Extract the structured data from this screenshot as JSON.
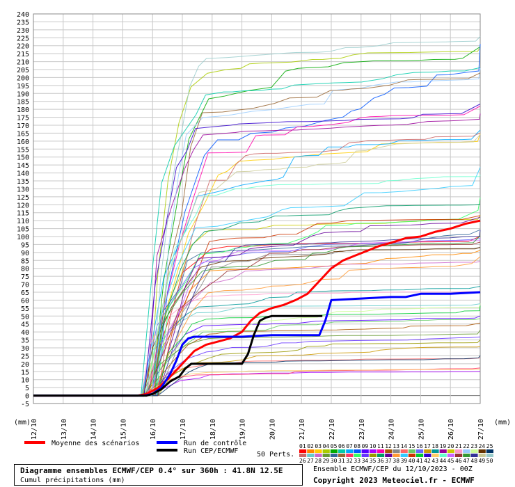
{
  "chart_data": {
    "type": "line",
    "y_ticks": [
      "240",
      "235",
      "230",
      "225",
      "220",
      "215",
      "210",
      "205",
      "200",
      "195",
      "190",
      "185",
      "180",
      "175",
      "170",
      "165",
      "160",
      "155",
      "150",
      "145",
      "140",
      "135",
      "130",
      "125",
      "120",
      "115",
      "110",
      "105",
      "100",
      "95",
      "90",
      "85",
      "80",
      "75",
      "70",
      "65",
      "60",
      "55",
      "50",
      "45",
      "40",
      "35",
      "30",
      "25",
      "20",
      "15",
      "10",
      "5",
      "0",
      "-5"
    ],
    "ylim": [
      -5,
      240
    ],
    "x_categories": [
      "12/10",
      "13/10",
      "14/10",
      "15/10",
      "16/10",
      "17/10",
      "18/10",
      "19/10",
      "20/10",
      "21/10",
      "22/10",
      "23/10",
      "24/10",
      "25/10",
      "26/10",
      "27/10"
    ],
    "unit_left": "(mm)",
    "unit_right": "(mm)",
    "grid": true,
    "series": [
      {
        "name": "Moyenne des scénarios",
        "color": "#ff0000",
        "width": 3,
        "x": [
          0,
          3.5,
          3.8,
          4.2,
          4.6,
          5.0,
          5.4,
          5.8,
          6.2,
          6.6,
          7.0,
          7.3,
          7.6,
          8.0,
          8.4,
          8.8,
          9.2,
          9.6,
          10.0,
          10.4,
          10.8,
          11.2,
          11.6,
          12.0,
          12.5,
          13.0,
          13.5,
          14.0,
          14.5,
          15.0
        ],
        "y": [
          0,
          0,
          1,
          5,
          12,
          20,
          28,
          32,
          34,
          36,
          40,
          47,
          52,
          55,
          57,
          60,
          64,
          72,
          80,
          85,
          88,
          91,
          94,
          96,
          99,
          100,
          103,
          105,
          108,
          110
        ]
      },
      {
        "name": "Run de contrôle",
        "color": "#0000ff",
        "width": 3,
        "x": [
          0,
          3.7,
          4.0,
          4.3,
          4.6,
          4.8,
          5.0,
          5.2,
          5.4,
          6.0,
          7.0,
          8.0,
          9.0,
          9.6,
          9.8,
          10.0,
          11.0,
          12.0,
          12.5,
          13.0,
          14.0,
          15.0
        ],
        "y": [
          0,
          0,
          1,
          5,
          14,
          22,
          32,
          36,
          37,
          37,
          37,
          38,
          38,
          38,
          47,
          60,
          61,
          62,
          62,
          64,
          64,
          65
        ]
      },
      {
        "name": "Run CEP/ECMWF",
        "color": "#000000",
        "width": 3,
        "x": [
          0,
          3.8,
          4.0,
          4.3,
          4.6,
          4.9,
          5.1,
          5.3,
          5.6,
          6.0,
          6.5,
          7.0,
          7.2,
          7.4,
          7.6,
          7.8,
          8.0,
          8.5,
          9.0,
          9.5,
          9.7
        ],
        "y": [
          0,
          0,
          1,
          4,
          9,
          12,
          17,
          20,
          20,
          20,
          20,
          20,
          26,
          38,
          47,
          49,
          50,
          50,
          50,
          50,
          50
        ]
      }
    ],
    "legend": [
      "Moyenne des scénarios",
      "Run de contrôle",
      "Run CEP/ECMWF"
    ],
    "perturbations_label": "50 Perts.",
    "perturbation_numbers_top": [
      "01",
      "02",
      "03",
      "04",
      "05",
      "06",
      "07",
      "08",
      "09",
      "10",
      "11",
      "12",
      "13",
      "14",
      "15",
      "16",
      "17",
      "18",
      "19",
      "20",
      "21",
      "22",
      "23",
      "24",
      "25"
    ],
    "perturbation_numbers_bottom": [
      "26",
      "27",
      "28",
      "29",
      "30",
      "31",
      "32",
      "33",
      "34",
      "35",
      "36",
      "37",
      "38",
      "39",
      "40",
      "41",
      "42",
      "43",
      "44",
      "45",
      "46",
      "47",
      "48",
      "49",
      "50"
    ],
    "perturbation_colors": [
      "#ff0000",
      "#ff8800",
      "#ffcc00",
      "#aacc00",
      "#00aa00",
      "#00ccaa",
      "#00aaff",
      "#0055ff",
      "#5500ff",
      "#aa00ff",
      "#ff00aa",
      "#aa5500",
      "#888888",
      "#ff6666",
      "#66cc66",
      "#6666ff",
      "#cc9900",
      "#009999",
      "#990099",
      "#cccc00",
      "#ff99cc",
      "#99ccff",
      "#ccff99",
      "#663300",
      "#003366"
    ],
    "perturbation_colors_2": [
      "#cc6666",
      "#66cccc",
      "#cc66cc",
      "#669933",
      "#336699",
      "#996633",
      "#ff3366",
      "#33ff66",
      "#6633ff",
      "#999900",
      "#009966",
      "#660099",
      "#ff9933",
      "#33ccff",
      "#cc3300",
      "#00cc33",
      "#3300cc",
      "#ffcc66",
      "#66ffcc",
      "#cc66ff",
      "#993333",
      "#339933",
      "#333399",
      "#cccc99",
      "#99cccc"
    ]
  },
  "footer": {
    "title": "Diagramme ensembles ECMWF/CEP 0.4° sur 360h : 41.8N 12.5E",
    "subtitle": "Cumul précipitations (mm)",
    "info": "Ensemble ECMWF/CEP du 12/10/2023 - 00Z",
    "copyright": "Copyright 2023 Meteociel.fr - ECMWF"
  }
}
